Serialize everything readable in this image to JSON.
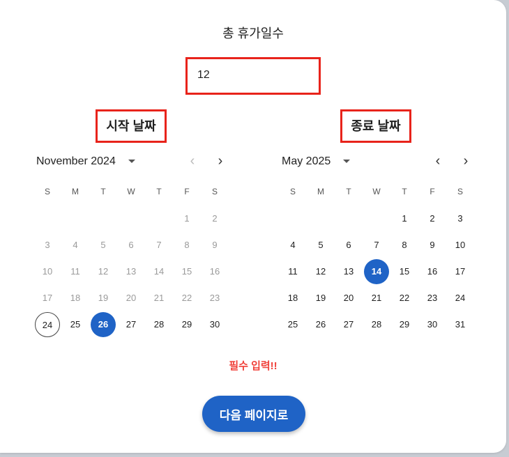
{
  "title": "총 휴가일수",
  "total_days": "12",
  "start_label": "시작 날짜",
  "end_label": "종료 날짜",
  "left_cal": {
    "month": "November 2024",
    "dow": [
      "S",
      "M",
      "T",
      "W",
      "T",
      "F",
      "S"
    ],
    "lead_blanks": 5,
    "days": 30,
    "muted_until": 23,
    "today": 24,
    "selected": 26
  },
  "right_cal": {
    "month": "May 2025",
    "dow": [
      "S",
      "M",
      "T",
      "W",
      "T",
      "F",
      "S"
    ],
    "lead_blanks": 4,
    "days": 31,
    "muted_until": 0,
    "today": 0,
    "selected": 14
  },
  "error_text": "필수 입력!!",
  "next_button": "다음 페이지로",
  "icons": {
    "prev": "chevron-left-icon",
    "next": "chevron-right-icon",
    "dropdown": "caret-down-icon"
  },
  "colors": {
    "accent": "#1f63c6",
    "error": "#f0413a",
    "highlight_box": "#e8231b"
  }
}
